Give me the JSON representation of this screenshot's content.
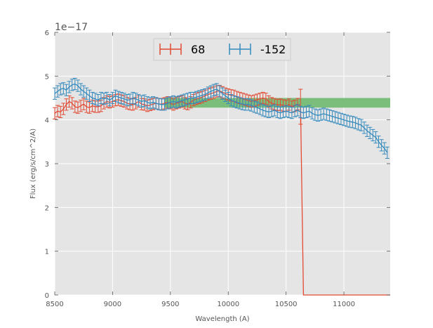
{
  "chart_data": {
    "type": "line",
    "title": "",
    "xlabel": "Wavelength (A)",
    "ylabel": "Flux (erg/s/cm^2/A)",
    "y_offset_text": "1e−17",
    "xlim": [
      8500,
      11400
    ],
    "ylim": [
      0,
      6
    ],
    "xticks": [
      8500,
      9000,
      9500,
      10000,
      10500,
      11000
    ],
    "xtick_labels": [
      "8500",
      "9000",
      "9500",
      "10000",
      "10500",
      "11000"
    ],
    "yticks": [
      0,
      1,
      2,
      3,
      4,
      5,
      6
    ],
    "ytick_labels": [
      "0",
      "1",
      "2",
      "3",
      "4",
      "5",
      "6"
    ],
    "grid": true,
    "legend_position": "top-center",
    "legend_entries": [
      "68",
      "-152"
    ],
    "band": {
      "x": [
        9450,
        11400
      ],
      "y": [
        4.28,
        4.5
      ],
      "color": "#6fb86f"
    },
    "series": [
      {
        "name": "68",
        "color": "#e24a33",
        "x": [
          8500,
          8525,
          8550,
          8575,
          8600,
          8625,
          8650,
          8675,
          8700,
          8725,
          8750,
          8775,
          8800,
          8825,
          8850,
          8875,
          8900,
          8925,
          8950,
          8975,
          9000,
          9025,
          9050,
          9075,
          9100,
          9125,
          9150,
          9175,
          9200,
          9225,
          9250,
          9275,
          9300,
          9325,
          9350,
          9375,
          9400,
          9425,
          9450,
          9475,
          9500,
          9525,
          9550,
          9575,
          9600,
          9625,
          9650,
          9675,
          9700,
          9725,
          9750,
          9775,
          9800,
          9825,
          9850,
          9875,
          9900,
          9925,
          9950,
          9975,
          10000,
          10025,
          10050,
          10075,
          10100,
          10125,
          10150,
          10175,
          10200,
          10225,
          10250,
          10275,
          10300,
          10325,
          10350,
          10375,
          10400,
          10425,
          10450,
          10475,
          10500,
          10525,
          10550,
          10575,
          10600,
          10625,
          10650,
          10700,
          10800,
          10900,
          11000,
          11100,
          11200,
          11300,
          11400
        ],
        "y": [
          4.15,
          4.2,
          4.18,
          4.25,
          4.35,
          4.42,
          4.38,
          4.3,
          4.28,
          4.32,
          4.36,
          4.3,
          4.28,
          4.32,
          4.3,
          4.3,
          4.32,
          4.38,
          4.42,
          4.4,
          4.42,
          4.45,
          4.46,
          4.44,
          4.42,
          4.38,
          4.36,
          4.35,
          4.38,
          4.42,
          4.36,
          4.35,
          4.32,
          4.34,
          4.36,
          4.38,
          4.36,
          4.36,
          4.38,
          4.4,
          4.38,
          4.35,
          4.38,
          4.4,
          4.42,
          4.38,
          4.36,
          4.4,
          4.45,
          4.48,
          4.5,
          4.52,
          4.55,
          4.58,
          4.6,
          4.62,
          4.65,
          4.66,
          4.63,
          4.6,
          4.58,
          4.56,
          4.55,
          4.52,
          4.5,
          4.48,
          4.46,
          4.44,
          4.42,
          4.44,
          4.46,
          4.48,
          4.5,
          4.48,
          4.42,
          4.38,
          4.36,
          4.34,
          4.35,
          4.33,
          4.32,
          4.35,
          4.3,
          4.32,
          4.36,
          4.3,
          0,
          0,
          0,
          0,
          0,
          0,
          0,
          0,
          0
        ],
        "err": [
          0.13,
          0.13,
          0.13,
          0.13,
          0.13,
          0.13,
          0.13,
          0.13,
          0.13,
          0.13,
          0.13,
          0.13,
          0.13,
          0.13,
          0.13,
          0.13,
          0.13,
          0.13,
          0.13,
          0.13,
          0.13,
          0.13,
          0.13,
          0.13,
          0.13,
          0.13,
          0.13,
          0.13,
          0.13,
          0.13,
          0.13,
          0.13,
          0.13,
          0.13,
          0.13,
          0.13,
          0.13,
          0.13,
          0.13,
          0.13,
          0.13,
          0.13,
          0.13,
          0.13,
          0.13,
          0.13,
          0.13,
          0.13,
          0.13,
          0.13,
          0.13,
          0.13,
          0.13,
          0.13,
          0.13,
          0.13,
          0.13,
          0.13,
          0.13,
          0.13,
          0.13,
          0.13,
          0.13,
          0.13,
          0.13,
          0.13,
          0.13,
          0.13,
          0.13,
          0.13,
          0.13,
          0.13,
          0.13,
          0.13,
          0.13,
          0.13,
          0.13,
          0.13,
          0.13,
          0.13,
          0.13,
          0.13,
          0.13,
          0.13,
          0.13,
          0.4,
          0,
          0,
          0,
          0,
          0,
          0,
          0,
          0,
          0
        ]
      },
      {
        "name": "-152",
        "color": "#348abd",
        "x": [
          8500,
          8525,
          8550,
          8575,
          8600,
          8625,
          8650,
          8675,
          8700,
          8725,
          8750,
          8775,
          8800,
          8825,
          8850,
          8875,
          8900,
          8925,
          8950,
          8975,
          9000,
          9025,
          9050,
          9075,
          9100,
          9125,
          9150,
          9175,
          9200,
          9225,
          9250,
          9275,
          9300,
          9325,
          9350,
          9375,
          9400,
          9425,
          9450,
          9475,
          9500,
          9525,
          9550,
          9575,
          9600,
          9625,
          9650,
          9675,
          9700,
          9725,
          9750,
          9775,
          9800,
          9825,
          9850,
          9875,
          9900,
          9925,
          9950,
          9975,
          10000,
          10025,
          10050,
          10075,
          10100,
          10125,
          10150,
          10175,
          10200,
          10225,
          10250,
          10275,
          10300,
          10325,
          10350,
          10375,
          10400,
          10425,
          10450,
          10475,
          10500,
          10525,
          10550,
          10575,
          10600,
          10625,
          10650,
          10675,
          10700,
          10725,
          10750,
          10775,
          10800,
          10825,
          10850,
          10875,
          10900,
          10925,
          10950,
          10975,
          11000,
          11025,
          11050,
          11075,
          11100,
          11125,
          11150,
          11175,
          11200,
          11225,
          11250,
          11275,
          11300,
          11325,
          11350,
          11375
        ],
        "y": [
          4.6,
          4.65,
          4.7,
          4.72,
          4.68,
          4.75,
          4.8,
          4.82,
          4.78,
          4.7,
          4.65,
          4.6,
          4.55,
          4.5,
          4.48,
          4.45,
          4.5,
          4.48,
          4.5,
          4.45,
          4.5,
          4.55,
          4.52,
          4.5,
          4.48,
          4.45,
          4.46,
          4.5,
          4.48,
          4.45,
          4.42,
          4.44,
          4.4,
          4.38,
          4.4,
          4.38,
          4.36,
          4.35,
          4.35,
          4.38,
          4.4,
          4.42,
          4.4,
          4.42,
          4.44,
          4.46,
          4.48,
          4.5,
          4.5,
          4.52,
          4.54,
          4.56,
          4.58,
          4.62,
          4.65,
          4.68,
          4.7,
          4.65,
          4.6,
          4.55,
          4.5,
          4.45,
          4.42,
          4.4,
          4.38,
          4.36,
          4.35,
          4.35,
          4.33,
          4.3,
          4.28,
          4.25,
          4.22,
          4.2,
          4.18,
          4.2,
          4.22,
          4.18,
          4.16,
          4.18,
          4.2,
          4.18,
          4.16,
          4.2,
          4.22,
          4.18,
          4.16,
          4.18,
          4.2,
          4.15,
          4.12,
          4.1,
          4.12,
          4.14,
          4.12,
          4.1,
          4.08,
          4.06,
          4.04,
          4.02,
          4.0,
          3.98,
          3.96,
          3.95,
          3.93,
          3.9,
          3.88,
          3.82,
          3.75,
          3.7,
          3.65,
          3.6,
          3.5,
          3.42,
          3.35,
          3.25
        ],
        "err": [
          0.13,
          0.13,
          0.13,
          0.13,
          0.13,
          0.13,
          0.13,
          0.13,
          0.13,
          0.13,
          0.13,
          0.13,
          0.13,
          0.13,
          0.13,
          0.13,
          0.13,
          0.13,
          0.13,
          0.13,
          0.13,
          0.13,
          0.13,
          0.13,
          0.13,
          0.13,
          0.13,
          0.13,
          0.13,
          0.13,
          0.13,
          0.13,
          0.13,
          0.13,
          0.13,
          0.13,
          0.13,
          0.13,
          0.13,
          0.13,
          0.13,
          0.13,
          0.13,
          0.13,
          0.13,
          0.13,
          0.13,
          0.13,
          0.13,
          0.13,
          0.13,
          0.13,
          0.13,
          0.13,
          0.13,
          0.13,
          0.13,
          0.13,
          0.13,
          0.13,
          0.13,
          0.13,
          0.13,
          0.13,
          0.13,
          0.13,
          0.13,
          0.13,
          0.13,
          0.13,
          0.13,
          0.13,
          0.13,
          0.13,
          0.13,
          0.13,
          0.13,
          0.13,
          0.13,
          0.13,
          0.13,
          0.13,
          0.13,
          0.13,
          0.13,
          0.13,
          0.13,
          0.13,
          0.13,
          0.13,
          0.13,
          0.13,
          0.13,
          0.13,
          0.13,
          0.13,
          0.13,
          0.13,
          0.13,
          0.13,
          0.13,
          0.13,
          0.13,
          0.13,
          0.13,
          0.13,
          0.13,
          0.13,
          0.13,
          0.13,
          0.13,
          0.13,
          0.13,
          0.13,
          0.13,
          0.13
        ]
      }
    ]
  }
}
